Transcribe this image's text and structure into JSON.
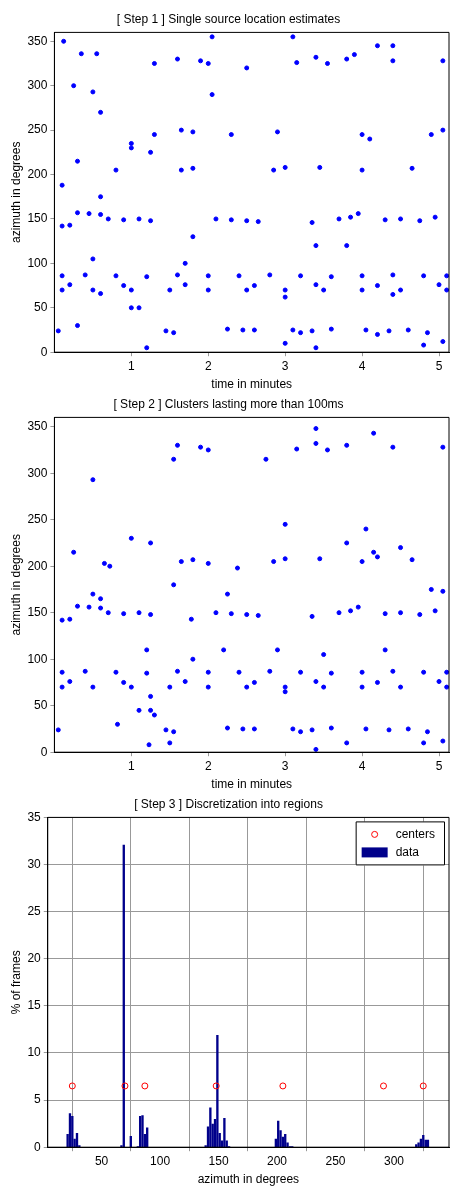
{
  "chart_data": [
    {
      "type": "scatter",
      "title": "[ Step 1 ] Single source location estimates",
      "xlabel": "time in minutes",
      "ylabel": "azimuth in degrees",
      "xlim": [
        0,
        5.13
      ],
      "xticks": [
        1,
        2,
        3,
        4,
        5
      ],
      "ylim": [
        0,
        360
      ],
      "yticks": [
        0,
        50,
        100,
        150,
        200,
        250,
        300,
        350
      ],
      "grid": false,
      "marker": "circle",
      "series": [
        {
          "color": "#0000ff",
          "x": [
            0.1,
            0.5,
            1,
            1.5,
            2,
            2.5,
            3,
            3.5,
            4,
            4.5,
            5.1,
            0.1,
            0.4,
            0.8,
            1.2,
            1.6,
            2,
            2.4,
            2.8,
            3.2,
            3.6,
            4,
            4.4,
            4.8,
            5.1,
            0.2,
            0.9,
            1.7,
            2.6,
            3.4,
            4.2,
            5,
            0.6,
            3,
            4.4,
            0.1,
            0.2,
            0.3,
            0.45,
            0.6,
            0.7,
            0.9,
            1.1,
            1.25,
            2.1,
            2.3,
            2.5,
            2.65,
            3.35,
            3.7,
            3.85,
            3.95,
            4.3,
            4.5,
            4.75,
            4.95,
            1.65,
            1.8,
            2.85,
            3,
            3.45,
            4,
            4.65,
            1.25,
            1,
            1.6,
            1.9,
            2,
            3.15,
            3.4,
            3.55,
            3.8,
            4.4,
            5.05,
            0.05,
            1.45,
            1.55,
            2.25,
            2.45,
            2.6,
            3.1,
            3.2,
            3.35,
            3.6,
            4.05,
            4.35,
            4.6,
            4.85,
            5.05,
            0.12,
            0.5,
            0.55,
            0.35,
            0.6,
            0.3,
            0.25,
            0.6,
            0.8,
            1,
            1.3,
            1.65,
            1.8,
            2.3,
            2.05,
            2.05,
            2.9,
            3.4,
            3.1,
            3.9,
            4,
            4.1,
            4.4,
            4.9,
            5.05,
            1,
            1.1,
            1.2,
            3.4,
            4.2,
            0.5,
            3.8,
            2.5,
            1.3,
            4.2,
            1.7,
            0.3,
            0.1,
            1.8,
            3,
            4.8
          ],
          "values": [
            70,
            70,
            70,
            70,
            70,
            70,
            70,
            70,
            70,
            70,
            70,
            86,
            87,
            86,
            85,
            87,
            86,
            86,
            87,
            86,
            85,
            86,
            87,
            86,
            86,
            76,
            75,
            76,
            75,
            76,
            75,
            76,
            66,
            62,
            65,
            142,
            143,
            157,
            156,
            155,
            150,
            149,
            150,
            148,
            150,
            149,
            148,
            147,
            146,
            150,
            152,
            156,
            149,
            150,
            148,
            152,
            205,
            207,
            205,
            208,
            208,
            205,
            207,
            225,
            230,
            330,
            328,
            325,
            326,
            332,
            325,
            330,
            328,
            328,
            24,
            24,
            22,
            26,
            25,
            25,
            25,
            22,
            24,
            26,
            25,
            24,
            25,
            22,
            12,
            350,
            293,
            336,
            336,
            270,
            215,
            300,
            175,
            205,
            235,
            245,
            250,
            248,
            245,
            290,
            355,
            248,
            120,
            355,
            335,
            245,
            240,
            345,
            245,
            250,
            50,
            50,
            5,
            5,
            20,
            105,
            120,
            320,
            325,
            345,
            100,
            30,
            188,
            130,
            10,
            8
          ]
        }
      ]
    },
    {
      "type": "scatter",
      "title": "[ Step 2 ] Clusters lasting more than 100ms",
      "xlabel": "time in minutes",
      "ylabel": "azimuth in degrees",
      "xlim": [
        0,
        5.13
      ],
      "xticks": [
        1,
        2,
        3,
        4,
        5
      ],
      "ylim": [
        0,
        360
      ],
      "yticks": [
        0,
        50,
        100,
        150,
        200,
        250,
        300,
        350
      ],
      "grid": false,
      "marker": "circle",
      "series": [
        {
          "color": "#0000ff",
          "x": [
            0.1,
            0.5,
            1,
            1.5,
            2,
            2.5,
            3,
            3.5,
            4,
            4.5,
            5.1,
            0.1,
            0.4,
            0.8,
            1.2,
            1.6,
            2,
            2.4,
            2.8,
            3.2,
            3.6,
            4,
            4.4,
            4.8,
            5.1,
            0.2,
            0.9,
            1.7,
            2.6,
            3.4,
            4.2,
            5,
            0.1,
            0.2,
            0.3,
            0.45,
            0.6,
            0.7,
            0.9,
            1.1,
            1.25,
            2.1,
            2.3,
            2.5,
            2.65,
            3.35,
            3.7,
            3.85,
            3.95,
            4.3,
            4.5,
            4.75,
            4.95,
            1.65,
            1.8,
            2.85,
            3,
            3.45,
            4,
            4.65,
            1.25,
            1,
            1.6,
            1.9,
            2,
            3.15,
            3.4,
            3.55,
            3.8,
            4.4,
            5.05,
            0.05,
            1.45,
            1.55,
            2.25,
            2.45,
            2.6,
            3.1,
            3.2,
            3.35,
            3.6,
            4.05,
            4.35,
            4.6,
            4.85,
            5.05,
            0.5,
            0.25,
            0.65,
            0.72,
            1.8,
            1.2,
            2.2,
            2.9,
            3.5,
            4.3,
            2.25,
            1.55,
            2,
            2.38,
            3,
            3.4,
            4.15,
            4.05,
            4.15,
            4.2,
            3.8,
            4.5,
            4.9,
            5.05,
            2.75,
            1.55,
            1.78,
            1.1,
            1.25,
            1.3,
            1.23,
            0.82,
            1.5,
            3.4,
            3.8,
            4.8,
            1.25,
            3,
            0.5,
            0.6
          ],
          "values": [
            70,
            70,
            70,
            70,
            70,
            70,
            70,
            70,
            70,
            70,
            70,
            86,
            87,
            86,
            85,
            87,
            86,
            86,
            87,
            86,
            85,
            86,
            87,
            86,
            86,
            76,
            75,
            76,
            75,
            76,
            75,
            76,
            142,
            143,
            157,
            156,
            155,
            150,
            149,
            150,
            148,
            150,
            149,
            148,
            147,
            146,
            150,
            152,
            156,
            149,
            150,
            148,
            152,
            205,
            207,
            205,
            208,
            208,
            205,
            207,
            225,
            230,
            330,
            328,
            325,
            326,
            332,
            325,
            330,
            328,
            328,
            24,
            24,
            22,
            26,
            25,
            25,
            25,
            22,
            24,
            26,
            25,
            24,
            25,
            22,
            12,
            293,
            215,
            203,
            200,
            100,
            110,
            110,
            110,
            105,
            110,
            170,
            180,
            203,
            198,
            245,
            348,
            343,
            240,
            215,
            210,
            225,
            220,
            175,
            173,
            315,
            315,
            143,
            45,
            45,
            40,
            8,
            30,
            10,
            3,
            10,
            10,
            60,
            65,
            170,
            165
          ]
        }
      ]
    },
    {
      "type": "histogram",
      "title": "[ Step 3 ] Discretization into regions",
      "xlabel": "azimuth in degrees",
      "ylabel": "% of frames",
      "xlim": [
        4,
        347
      ],
      "xticks": [
        50,
        100,
        150,
        200,
        250,
        300
      ],
      "ylim": [
        0,
        35
      ],
      "yticks": [
        0,
        5,
        10,
        15,
        20,
        25,
        30,
        35
      ],
      "grid": true,
      "legend": "top right",
      "series": [
        {
          "name": "centers",
          "type": "scatter",
          "color": "#ff0000",
          "x": [
            25,
            70,
            87,
            148,
            205,
            291,
            325
          ],
          "values": [
            6.5,
            6.5,
            6.5,
            6.5,
            6.5,
            6.5,
            6.5
          ]
        },
        {
          "name": "data",
          "color": "#00008b",
          "bins": [
            20,
            22,
            24,
            26,
            28,
            30,
            32,
            66,
            68,
            70,
            74,
            76,
            80,
            82,
            84,
            86,
            88,
            90,
            138,
            140,
            142,
            144,
            146,
            148,
            150,
            152,
            154,
            156,
            158,
            160,
            198,
            200,
            202,
            204,
            206,
            208,
            210,
            214,
            318,
            320,
            322,
            324,
            326,
            330
          ],
          "values": [
            1.4,
            3.6,
            3.3,
            0.9,
            1.5,
            0.2,
            0,
            0.2,
            32.1,
            0,
            1.2,
            0,
            0.1,
            3.3,
            3.4,
            1.4,
            2.1,
            0,
            0.2,
            2.2,
            4.2,
            2.5,
            3.0,
            11.9,
            1.5,
            0.7,
            3.1,
            0.7,
            0.1,
            0,
            0.9,
            2.8,
            1.8,
            1.1,
            1.4,
            0.5,
            0.1,
            0,
            0.3,
            0.5,
            0.9,
            1.3,
            0.8
          ]
        }
      ]
    }
  ]
}
